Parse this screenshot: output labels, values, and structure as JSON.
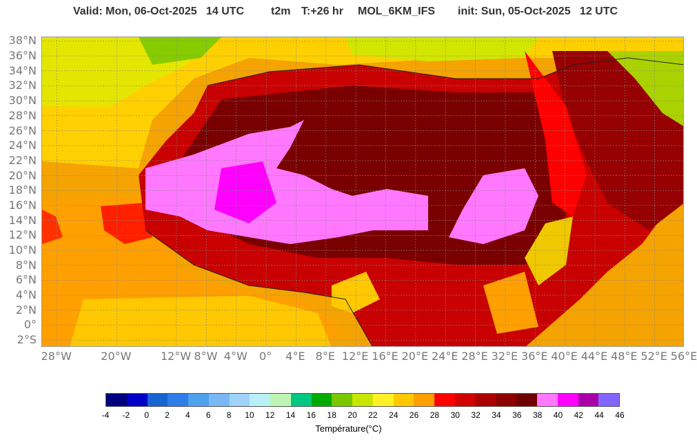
{
  "header": {
    "valid": "Valid: Mon, 06-Oct-2025   14 UTC",
    "param": "t2m",
    "lead": "T:+26 hr",
    "model": "MOL_6KM_IFS",
    "init": "init: Sun, 05-Oct-2025   12 UTC"
  },
  "map": {
    "region": "North Africa and Arabian Peninsula",
    "lat_labels": [
      "38°N",
      "36°N",
      "34°N",
      "32°N",
      "30°N",
      "28°N",
      "26°N",
      "24°N",
      "22°N",
      "20°N",
      "18°N",
      "16°N",
      "14°N",
      "12°N",
      "10°N",
      "8°N",
      "6°N",
      "4°N",
      "2°N",
      "0°",
      "2°S"
    ],
    "lon_labels": [
      "28°W",
      "20°W",
      "12°W",
      "8°W",
      "4°W",
      "0°",
      "4°E",
      "8°E",
      "12°E",
      "16°E",
      "20°E",
      "24°E",
      "28°E",
      "32°E",
      "36°E",
      "40°E",
      "44°E",
      "48°E",
      "52°E",
      "56°E"
    ],
    "lat_range": [
      -3,
      38.5
    ],
    "lon_range": [
      -30,
      56
    ],
    "grid": true
  },
  "colorbar": {
    "title": "Température(°C)",
    "ticks": [
      "-4",
      "-2",
      "0",
      "2",
      "4",
      "6",
      "8",
      "10",
      "12",
      "14",
      "16",
      "18",
      "20",
      "22",
      "24",
      "26",
      "28",
      "30",
      "32",
      "34",
      "36",
      "38",
      "40",
      "42",
      "44",
      "46"
    ],
    "colors": [
      "#00007f",
      "#0000c8",
      "#1764d2",
      "#2d7ee8",
      "#50a0f0",
      "#78b8f5",
      "#a0d2fa",
      "#b8f0f8",
      "#bef5b4",
      "#00c882",
      "#00aa00",
      "#78c800",
      "#c8e600",
      "#fff028",
      "#ffc800",
      "#ffa000",
      "#ff0000",
      "#d20000",
      "#aa0000",
      "#8c0000",
      "#6e0000",
      "#ff78ff",
      "#ff00ff",
      "#aa00aa",
      "#8264ff"
    ]
  }
}
